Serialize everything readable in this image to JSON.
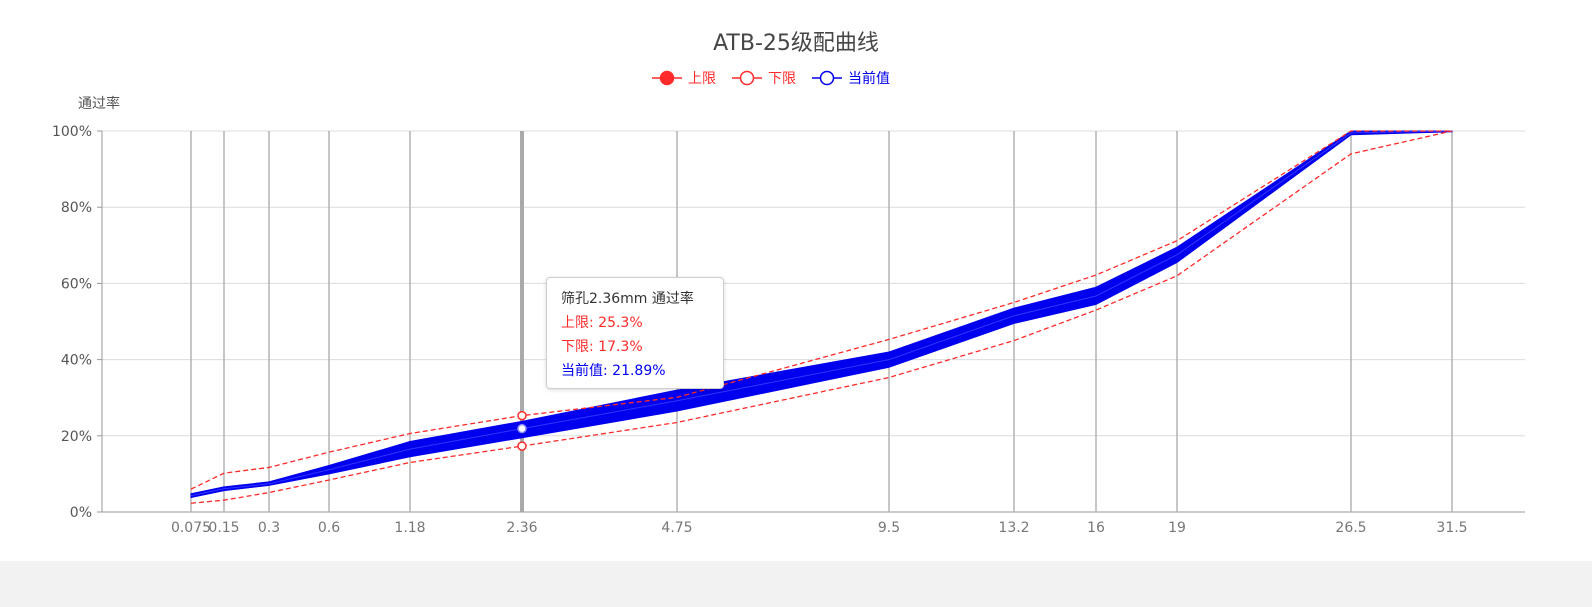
{
  "chart_data": {
    "type": "line",
    "title": "ATB-25级配曲线",
    "ylabel": "通过率",
    "y_tick_labels": [
      "0%",
      "20%",
      "40%",
      "60%",
      "80%",
      "100%"
    ],
    "ylim": [
      0,
      100
    ],
    "categories": [
      "0.075",
      "0.15",
      "0.3",
      "0.6",
      "1.18",
      "2.36",
      "4.75",
      "9.5",
      "13.2",
      "16",
      "19",
      "26.5",
      "31.5"
    ],
    "legend_position": "top-center",
    "grid": true,
    "series": [
      {
        "name": "上限",
        "color": "#ff2a2a",
        "line_style": "dashed",
        "marker": "filled-circle",
        "values": [
          6,
          10.2,
          11.7,
          15.7,
          20.6,
          25.3,
          30.1,
          45.3,
          55,
          62.2,
          71.2,
          100,
          100
        ]
      },
      {
        "name": "下限",
        "color": "#ff2a2a",
        "line_style": "dashed",
        "marker": "hollow-circle",
        "values": [
          2.3,
          3.1,
          5.1,
          8.4,
          13,
          17.3,
          23.5,
          35.3,
          45,
          53,
          62,
          94,
          100
        ]
      },
      {
        "name": "当前值",
        "color": "#0000ee",
        "line_style": "solid-band",
        "marker": "hollow-circle",
        "band_low": [
          3.8,
          5.6,
          7.0,
          10.0,
          14.5,
          19.5,
          26.5,
          38.0,
          49.5,
          54.5,
          65.5,
          99.0,
          99.8
        ],
        "band_high": [
          4.8,
          6.6,
          7.9,
          12.2,
          18.5,
          23.8,
          32.0,
          42.0,
          53.5,
          59.0,
          69.5,
          100,
          100
        ],
        "values": [
          4.3,
          6.1,
          7.4,
          11.1,
          16.5,
          21.89,
          29.2,
          40,
          51.5,
          56.7,
          67.5,
          99.5,
          100
        ]
      }
    ]
  },
  "tooltip": {
    "title": "筛孔2.36mm 通过率",
    "upper": "上限: 25.3%",
    "lower": "下限: 17.3%",
    "current": "当前值: 21.89%"
  }
}
